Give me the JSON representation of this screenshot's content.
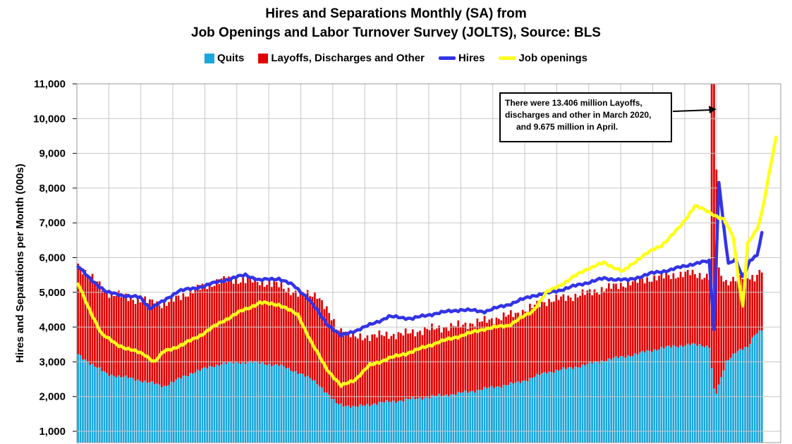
{
  "title_line1": "Hires and Separations Monthly (SA) from",
  "title_line2": "Job Openings and Labor Turnover Survey (JOLTS), Source: BLS",
  "legend": {
    "quits": "Quits",
    "layoffs": "Layoffs, Discharges and Other",
    "hires": "Hires",
    "openings": "Job openings"
  },
  "annotation": {
    "line1": "There were 13.406 million Layoffs,",
    "line2": "discharges and other in March 2020,",
    "line3": "and 9.675 million in April."
  },
  "colors": {
    "quits": "#1aa7dc",
    "layoffs": "#e00000",
    "hires": "#3333e6",
    "openings": "#ffff1a",
    "grid": "#c6c6c6"
  },
  "chart_data": {
    "type": "bar",
    "title": "Hires and Separations Monthly (SA) from Job Openings and Labor Turnover Survey (JOLTS), Source: BLS",
    "ylabel": "Hires and Separations per Month (000s)",
    "ylim": [
      1000,
      11000
    ],
    "yticks": [
      "1,000",
      "2,000",
      "3,000",
      "4,000",
      "5,000",
      "6,000",
      "7,000",
      "8,000",
      "9,000",
      "10,000",
      "11,000"
    ],
    "grid": true,
    "legend_position": "top-center",
    "series": [
      {
        "name": "Quits",
        "kind": "stacked-bar",
        "anchors": [
          [
            0,
            3200
          ],
          [
            12,
            2650
          ],
          [
            24,
            2500
          ],
          [
            36,
            2300
          ],
          [
            48,
            2700
          ],
          [
            60,
            2950
          ],
          [
            72,
            3000
          ],
          [
            84,
            2900
          ],
          [
            92,
            2700
          ],
          [
            100,
            2400
          ],
          [
            108,
            1800
          ],
          [
            116,
            1700
          ],
          [
            124,
            1800
          ],
          [
            136,
            1900
          ],
          [
            148,
            2000
          ],
          [
            160,
            2100
          ],
          [
            172,
            2250
          ],
          [
            184,
            2400
          ],
          [
            196,
            2700
          ],
          [
            208,
            2850
          ],
          [
            220,
            3050
          ],
          [
            232,
            3200
          ],
          [
            244,
            3400
          ],
          [
            256,
            3500
          ],
          [
            264,
            3450
          ],
          [
            266,
            2200
          ],
          [
            267,
            2100
          ],
          [
            268,
            2300
          ],
          [
            271,
            3000
          ],
          [
            275,
            3300
          ],
          [
            280,
            3400
          ],
          [
            283,
            3800
          ],
          [
            286,
            3950
          ]
        ]
      },
      {
        "name": "Layoffs, Discharges and Other",
        "kind": "stacked-bar",
        "anchors": [
          [
            0,
            2600
          ],
          [
            12,
            2350
          ],
          [
            24,
            2300
          ],
          [
            36,
            2350
          ],
          [
            48,
            2350
          ],
          [
            60,
            2400
          ],
          [
            72,
            2350
          ],
          [
            84,
            2300
          ],
          [
            92,
            2250
          ],
          [
            100,
            2550
          ],
          [
            108,
            2200
          ],
          [
            116,
            2000
          ],
          [
            124,
            1950
          ],
          [
            136,
            1900
          ],
          [
            148,
            1950
          ],
          [
            160,
            1950
          ],
          [
            172,
            1950
          ],
          [
            184,
            2000
          ],
          [
            196,
            2050
          ],
          [
            208,
            2050
          ],
          [
            220,
            2050
          ],
          [
            232,
            2100
          ],
          [
            244,
            2050
          ],
          [
            256,
            2050
          ],
          [
            264,
            2000
          ],
          [
            265,
            13406
          ],
          [
            266,
            9675
          ],
          [
            268,
            3300
          ],
          [
            271,
            2300
          ],
          [
            275,
            2100
          ],
          [
            280,
            2050
          ],
          [
            283,
            1650
          ],
          [
            286,
            1700
          ]
        ]
      },
      {
        "name": "Hires",
        "kind": "line",
        "anchors": [
          [
            0,
            5750
          ],
          [
            4,
            5450
          ],
          [
            12,
            5000
          ],
          [
            20,
            4900
          ],
          [
            26,
            4850
          ],
          [
            30,
            4550
          ],
          [
            36,
            4750
          ],
          [
            42,
            5050
          ],
          [
            48,
            5100
          ],
          [
            56,
            5250
          ],
          [
            64,
            5400
          ],
          [
            70,
            5500
          ],
          [
            76,
            5350
          ],
          [
            84,
            5400
          ],
          [
            90,
            5200
          ],
          [
            96,
            4850
          ],
          [
            104,
            4100
          ],
          [
            110,
            3750
          ],
          [
            114,
            3850
          ],
          [
            120,
            4000
          ],
          [
            130,
            4300
          ],
          [
            140,
            4250
          ],
          [
            150,
            4400
          ],
          [
            160,
            4500
          ],
          [
            170,
            4450
          ],
          [
            180,
            4650
          ],
          [
            190,
            4900
          ],
          [
            198,
            5000
          ],
          [
            206,
            5150
          ],
          [
            214,
            5300
          ],
          [
            220,
            5400
          ],
          [
            230,
            5350
          ],
          [
            240,
            5550
          ],
          [
            248,
            5650
          ],
          [
            256,
            5800
          ],
          [
            264,
            5900
          ],
          [
            266,
            3950
          ],
          [
            268,
            8200
          ],
          [
            270,
            6900
          ],
          [
            272,
            5800
          ],
          [
            275,
            5950
          ],
          [
            278,
            5450
          ],
          [
            281,
            5900
          ],
          [
            284,
            6050
          ],
          [
            286,
            6700
          ]
        ]
      },
      {
        "name": "Job openings",
        "kind": "line",
        "anchors": [
          [
            0,
            5250
          ],
          [
            4,
            4600
          ],
          [
            10,
            3800
          ],
          [
            16,
            3500
          ],
          [
            22,
            3350
          ],
          [
            28,
            3200
          ],
          [
            32,
            3000
          ],
          [
            36,
            3300
          ],
          [
            44,
            3500
          ],
          [
            52,
            3800
          ],
          [
            60,
            4150
          ],
          [
            68,
            4450
          ],
          [
            76,
            4700
          ],
          [
            84,
            4650
          ],
          [
            92,
            4350
          ],
          [
            98,
            3500
          ],
          [
            104,
            2800
          ],
          [
            110,
            2300
          ],
          [
            116,
            2500
          ],
          [
            122,
            2900
          ],
          [
            130,
            3100
          ],
          [
            140,
            3300
          ],
          [
            150,
            3550
          ],
          [
            160,
            3750
          ],
          [
            170,
            3950
          ],
          [
            180,
            4050
          ],
          [
            190,
            4450
          ],
          [
            196,
            5000
          ],
          [
            204,
            5300
          ],
          [
            212,
            5650
          ],
          [
            220,
            5850
          ],
          [
            228,
            5600
          ],
          [
            236,
            6050
          ],
          [
            244,
            6350
          ],
          [
            252,
            6900
          ],
          [
            258,
            7500
          ],
          [
            264,
            7300
          ],
          [
            270,
            7100
          ],
          [
            274,
            6600
          ],
          [
            276,
            5500
          ],
          [
            278,
            4600
          ],
          [
            280,
            6400
          ],
          [
            284,
            6800
          ],
          [
            286,
            7300
          ],
          [
            290,
            8800
          ],
          [
            294,
            10100
          ]
        ]
      }
    ]
  }
}
